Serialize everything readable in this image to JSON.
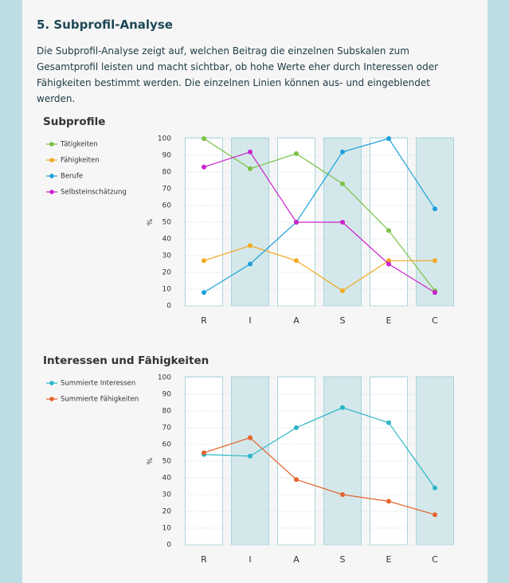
{
  "section": {
    "heading": "5. Subprofil-Analyse",
    "text": "Die Subprofil-Analyse zeigt auf, welchen Beitrag die einzelnen Subskalen zum Gesamtprofil leisten und macht sichtbar, ob hohe Werte eher durch Interessen oder Fähigkeiten bestimmt werden. Die einzelnen Linien können aus- und eingeblendet werden."
  },
  "chart_data": [
    {
      "type": "line",
      "title": "Subprofile",
      "y_label": "%",
      "categories": [
        "R",
        "I",
        "A",
        "S",
        "E",
        "C"
      ],
      "ylim": [
        0,
        100
      ],
      "yticks": [
        0,
        10,
        20,
        30,
        40,
        50,
        60,
        70,
        80,
        90,
        100
      ],
      "series": [
        {
          "name": "Tätigkeiten",
          "color": "#7ac143",
          "values": [
            100,
            82,
            91,
            73,
            45,
            9
          ]
        },
        {
          "name": "Fähigkeiten",
          "color": "#f2a91e",
          "values": [
            27,
            36,
            27,
            9,
            27,
            27
          ]
        },
        {
          "name": "Berufe",
          "color": "#1ea0dc",
          "values": [
            8,
            25,
            50,
            92,
            100,
            58
          ]
        },
        {
          "name": "Selbsteinschätzung",
          "color": "#cc22cc",
          "values": [
            83,
            92,
            50,
            50,
            25,
            8
          ]
        }
      ]
    },
    {
      "type": "line",
      "title": "Interessen und Fähigkeiten",
      "y_label": "%",
      "categories": [
        "R",
        "I",
        "A",
        "S",
        "E",
        "C"
      ],
      "ylim": [
        0,
        100
      ],
      "yticks": [
        0,
        10,
        20,
        30,
        40,
        50,
        60,
        70,
        80,
        90,
        100
      ],
      "series": [
        {
          "name": "Summierte Interessen",
          "color": "#2bb5c6",
          "values": [
            54,
            53,
            70,
            82,
            73,
            34
          ]
        },
        {
          "name": "Summierte Fähigkeiten",
          "color": "#e4642c",
          "values": [
            55,
            64,
            39,
            30,
            26,
            18
          ]
        }
      ]
    }
  ]
}
